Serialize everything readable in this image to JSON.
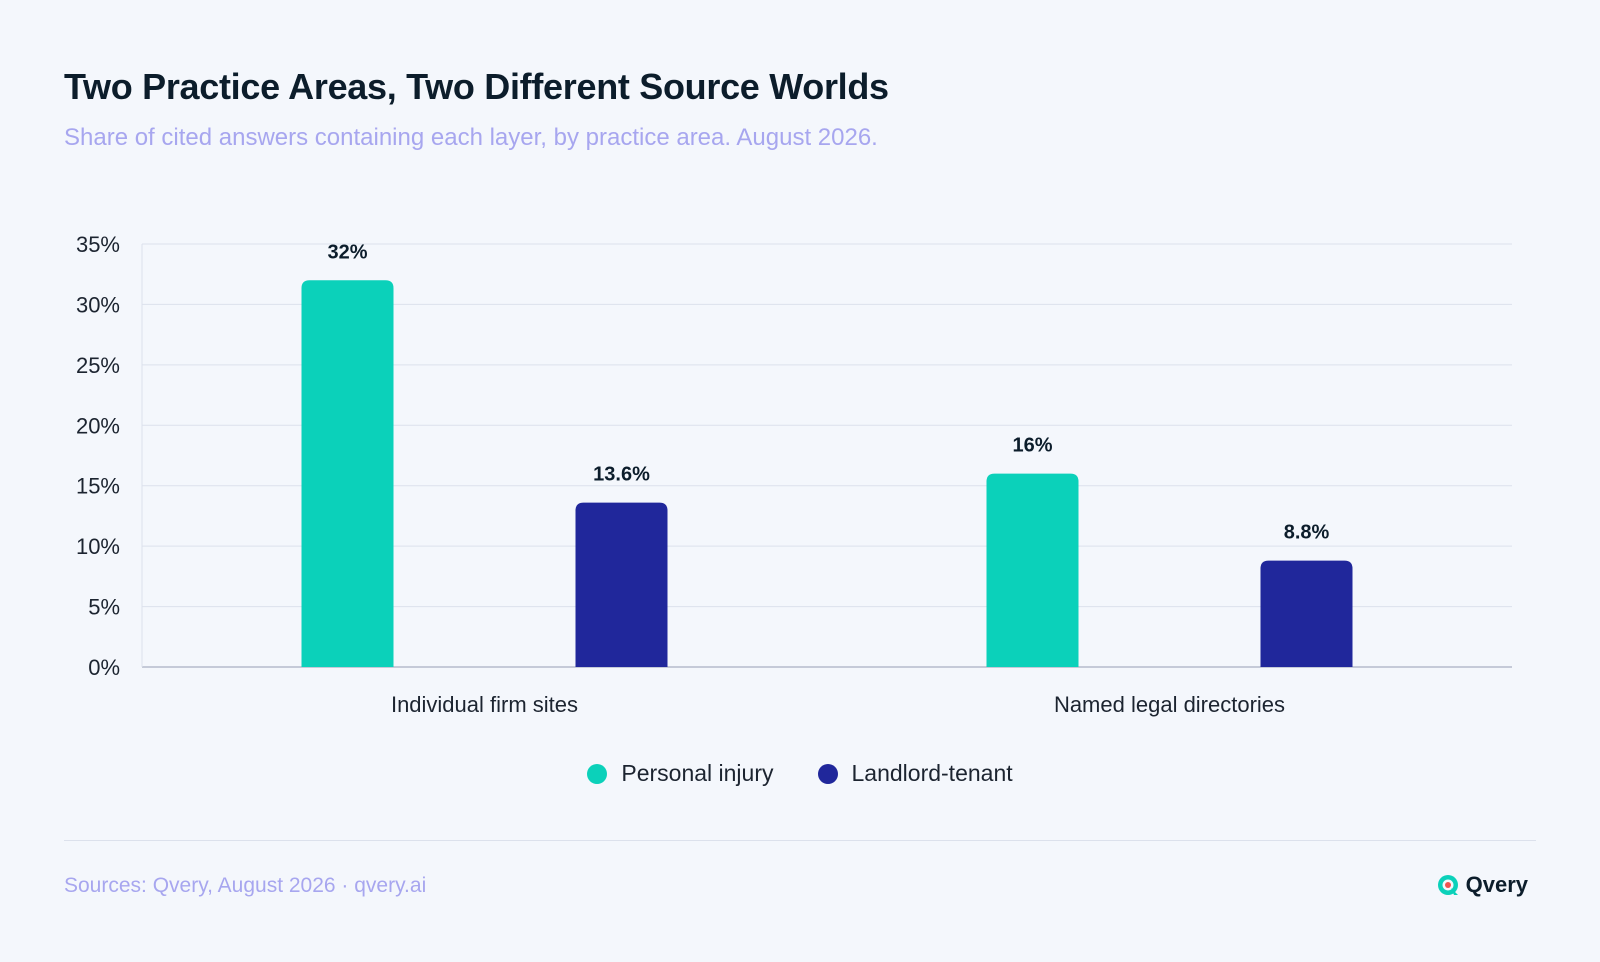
{
  "header": {
    "title": "Two Practice Areas, Two Different Source Worlds",
    "subtitle": "Share of cited answers containing each layer, by practice area. August 2026."
  },
  "footer": {
    "sources": "Sources: Qvery, August 2026 · qvery.ai",
    "brand_name": "Qvery"
  },
  "colors": {
    "personal_injury": "#0BD1BA",
    "landlord_tenant": "#20279B",
    "grid": "#DCE1EC",
    "axis": "#B5BCCB",
    "text": "#1C2430"
  },
  "chart_data": {
    "type": "bar",
    "categories": [
      "Individual firm sites",
      "Named legal directories"
    ],
    "series": [
      {
        "name": "Personal injury",
        "values": [
          32,
          16
        ],
        "labels": [
          "32%",
          "16%"
        ]
      },
      {
        "name": "Landlord-tenant",
        "values": [
          13.6,
          8.8
        ],
        "labels": [
          "13.6%",
          "8.8%"
        ]
      }
    ],
    "ylim": [
      0,
      35
    ],
    "yticks": [
      "0%",
      "5%",
      "10%",
      "15%",
      "20%",
      "25%",
      "30%",
      "35%"
    ],
    "ytick_values": [
      0,
      5,
      10,
      15,
      20,
      25,
      30,
      35
    ],
    "grid": true,
    "legend_position": "bottom-center"
  }
}
